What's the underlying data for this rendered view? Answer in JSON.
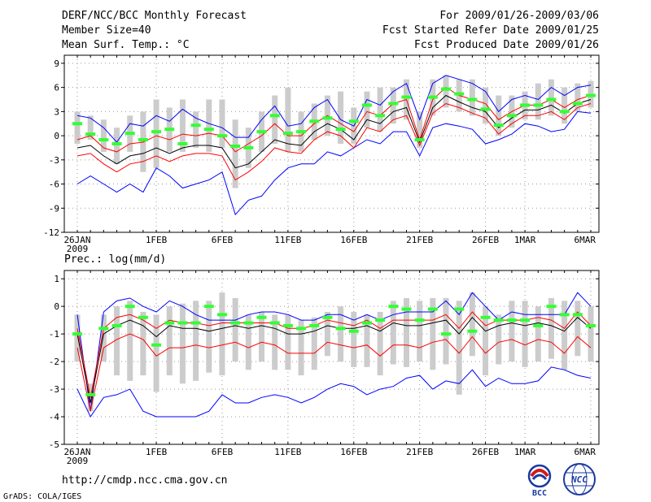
{
  "header": {
    "left": [
      "DERF/NCC/BCC Monthly Forecast",
      "Member Size=40",
      "Mean Surf. Temp.: °C"
    ],
    "right": [
      "For 2009/01/26-2009/03/06",
      "Fcst Started Refer Date 2009/01/25",
      "Fcst Produced Date 2009/01/26"
    ]
  },
  "footer": {
    "url": "http://cmdp.ncc.cma.gov.cn",
    "grads": "GrADS: COLA/IGES"
  },
  "logos": {
    "bcc": "BCC",
    "ncc": "NCC"
  },
  "colors": {
    "ensemble_max": "#0000ff",
    "ensemble_min": "#0000ff",
    "mean_bounds": "#ff0000",
    "mean": "#000000",
    "box": "#cccccc",
    "median": "#33ff33",
    "grid": "#999999"
  },
  "chart_data": [
    {
      "type": "line",
      "title": "Mean Surf. Temp.: °C",
      "x": [
        "26JAN",
        "27JAN",
        "28JAN",
        "29JAN",
        "30JAN",
        "31JAN",
        "1FEB",
        "2FEB",
        "3FEB",
        "4FEB",
        "5FEB",
        "6FEB",
        "7FEB",
        "8FEB",
        "9FEB",
        "10FEB",
        "11FEB",
        "12FEB",
        "13FEB",
        "14FEB",
        "15FEB",
        "16FEB",
        "17FEB",
        "18FEB",
        "19FEB",
        "20FEB",
        "21FEB",
        "22FEB",
        "23FEB",
        "24FEB",
        "25FEB",
        "26FEB",
        "27FEB",
        "28FEB",
        "1MAR",
        "2MAR",
        "3MAR",
        "4MAR",
        "5MAR",
        "6MAR"
      ],
      "xticks": [
        {
          "index": 0,
          "label": "26JAN"
        },
        {
          "index": 6,
          "label": "1FEB"
        },
        {
          "index": 11,
          "label": "6FEB"
        },
        {
          "index": 16,
          "label": "11FEB"
        },
        {
          "index": 21,
          "label": "16FEB"
        },
        {
          "index": 26,
          "label": "21FEB"
        },
        {
          "index": 31,
          "label": "26FEB"
        },
        {
          "index": 34,
          "label": "1MAR"
        },
        {
          "index": 39,
          "label": "6MAR"
        }
      ],
      "year_label": "2009",
      "ylim": [
        -12,
        10
      ],
      "yticks": [
        -12,
        -9,
        -6,
        -3,
        0,
        3,
        6,
        9
      ],
      "series": [
        {
          "name": "max",
          "values": [
            2.5,
            2.2,
            1.0,
            -0.8,
            1.5,
            1.2,
            2.5,
            1.8,
            3.3,
            2.2,
            1.5,
            1.0,
            -0.2,
            -0.2,
            2.0,
            3.7,
            1.2,
            1.5,
            3.5,
            4.5,
            2.0,
            1.2,
            4.5,
            3.8,
            5.5,
            6.5,
            2.0,
            6.5,
            7.5,
            7.0,
            6.5,
            5.5,
            3.0,
            4.5,
            5.0,
            4.5,
            6.0,
            5.0,
            6.0,
            6.3
          ]
        },
        {
          "name": "upper",
          "values": [
            -0.5,
            0.0,
            -1.5,
            -2.0,
            -1.0,
            -0.8,
            0.0,
            -0.5,
            0.2,
            0.0,
            0.3,
            0.0,
            -2.0,
            -1.0,
            0.0,
            1.5,
            0.0,
            0.0,
            1.5,
            2.5,
            1.5,
            0.5,
            3.0,
            2.5,
            4.0,
            4.5,
            -0.5,
            4.5,
            6.0,
            5.0,
            4.5,
            4.0,
            2.0,
            3.0,
            3.8,
            3.8,
            4.5,
            3.5,
            4.5,
            5.0
          ]
        },
        {
          "name": "mean",
          "values": [
            -1.5,
            -1.2,
            -2.5,
            -3.5,
            -2.5,
            -2.2,
            -1.5,
            -2.2,
            -1.5,
            -1.2,
            -1.2,
            -1.5,
            -4.0,
            -3.5,
            -2.0,
            -0.5,
            -1.0,
            -1.2,
            0.5,
            1.5,
            0.8,
            -0.5,
            2.0,
            1.5,
            3.0,
            3.5,
            -0.8,
            3.5,
            5.0,
            4.2,
            3.5,
            3.0,
            1.0,
            2.2,
            3.2,
            3.2,
            3.8,
            2.8,
            4.0,
            4.5
          ]
        },
        {
          "name": "lower",
          "values": [
            -2.5,
            -2.2,
            -3.5,
            -4.5,
            -3.5,
            -3.2,
            -2.5,
            -3.2,
            -2.5,
            -2.2,
            -2.2,
            -2.5,
            -5.5,
            -4.5,
            -3.2,
            -1.5,
            -2.0,
            -2.2,
            -0.5,
            0.5,
            0.0,
            -1.5,
            1.0,
            0.5,
            2.0,
            2.5,
            -1.2,
            2.8,
            4.0,
            3.5,
            2.8,
            2.2,
            0.2,
            1.5,
            2.5,
            2.5,
            3.0,
            2.0,
            3.5,
            4.0
          ]
        },
        {
          "name": "min",
          "values": [
            -6.0,
            -5.0,
            -6.0,
            -7.0,
            -6.0,
            -7.0,
            -4.0,
            -5.0,
            -6.5,
            -6.0,
            -5.5,
            -4.5,
            -9.8,
            -8.0,
            -7.5,
            -5.5,
            -4.0,
            -3.5,
            -3.5,
            -2.0,
            -2.5,
            -1.5,
            -0.5,
            -1.0,
            0.5,
            0.5,
            -2.5,
            1.0,
            1.5,
            1.2,
            0.8,
            -1.0,
            -0.5,
            0.2,
            1.5,
            1.2,
            0.5,
            0.8,
            3.0,
            2.8
          ]
        },
        {
          "name": "median",
          "values": [
            1.5,
            0.2,
            -0.5,
            -1.0,
            0.3,
            -0.5,
            0.5,
            0.8,
            -1.0,
            1.3,
            0.8,
            0.0,
            -1.3,
            -1.5,
            0.5,
            2.5,
            0.3,
            0.5,
            1.8,
            2.2,
            0.8,
            1.8,
            3.8,
            2.5,
            4.0,
            4.8,
            -0.5,
            4.8,
            5.8,
            5.2,
            4.5,
            3.3,
            1.3,
            2.5,
            3.8,
            3.8,
            4.5,
            3.0,
            4.0,
            5.0
          ]
        },
        {
          "name": "box_high",
          "values": [
            3.0,
            2.5,
            2.0,
            1.0,
            2.5,
            3.0,
            4.5,
            3.5,
            4.5,
            3.0,
            4.5,
            4.5,
            2.0,
            1.0,
            3.0,
            5.0,
            6.0,
            3.0,
            4.0,
            5.0,
            5.5,
            3.5,
            5.5,
            6.0,
            6.0,
            7.0,
            3.0,
            7.0,
            7.5,
            7.0,
            7.0,
            6.0,
            5.0,
            5.0,
            5.5,
            6.5,
            7.0,
            6.0,
            6.5,
            6.8
          ]
        },
        {
          "name": "box_low",
          "values": [
            -1.0,
            -0.5,
            -2.0,
            -3.5,
            -2.0,
            -4.5,
            -4.0,
            -2.0,
            -2.0,
            -1.5,
            -2.0,
            -1.5,
            -6.5,
            -4.0,
            -2.0,
            -1.0,
            -2.0,
            -2.0,
            -0.5,
            0.0,
            -1.0,
            -1.0,
            1.0,
            0.5,
            1.5,
            2.0,
            -1.5,
            2.5,
            3.5,
            3.0,
            2.5,
            1.5,
            0.0,
            1.0,
            2.0,
            2.0,
            2.5,
            1.5,
            3.0,
            3.5
          ]
        }
      ]
    },
    {
      "type": "line",
      "title": "Prec.: log(mm/d)",
      "x": [
        "26JAN",
        "27JAN",
        "28JAN",
        "29JAN",
        "30JAN",
        "31JAN",
        "1FEB",
        "2FEB",
        "3FEB",
        "4FEB",
        "5FEB",
        "6FEB",
        "7FEB",
        "8FEB",
        "9FEB",
        "10FEB",
        "11FEB",
        "12FEB",
        "13FEB",
        "14FEB",
        "15FEB",
        "16FEB",
        "17FEB",
        "18FEB",
        "19FEB",
        "20FEB",
        "21FEB",
        "22FEB",
        "23FEB",
        "24FEB",
        "25FEB",
        "26FEB",
        "27FEB",
        "28FEB",
        "1MAR",
        "2MAR",
        "3MAR",
        "4MAR",
        "5MAR",
        "6MAR"
      ],
      "xticks": [
        {
          "index": 0,
          "label": "26JAN"
        },
        {
          "index": 6,
          "label": "1FEB"
        },
        {
          "index": 11,
          "label": "6FEB"
        },
        {
          "index": 16,
          "label": "11FEB"
        },
        {
          "index": 21,
          "label": "16FEB"
        },
        {
          "index": 26,
          "label": "21FEB"
        },
        {
          "index": 31,
          "label": "26FEB"
        },
        {
          "index": 34,
          "label": "1MAR"
        },
        {
          "index": 39,
          "label": "6MAR"
        }
      ],
      "year_label": "2009",
      "ylim": [
        -5,
        1.3
      ],
      "yticks": [
        -5,
        -4,
        -3,
        -2,
        -1,
        0,
        1
      ],
      "series": [
        {
          "name": "max",
          "values": [
            -0.3,
            -3.8,
            -0.2,
            0.2,
            0.3,
            0.0,
            -0.2,
            0.2,
            0.0,
            -0.3,
            -0.5,
            -0.5,
            -0.5,
            -0.3,
            -0.2,
            -0.2,
            -0.3,
            -0.5,
            -0.5,
            -0.3,
            -0.3,
            -0.5,
            -0.3,
            -0.5,
            -0.3,
            -0.2,
            -0.2,
            -0.2,
            0.2,
            -0.3,
            0.5,
            0.0,
            -0.5,
            -0.2,
            -0.3,
            -0.3,
            -0.3,
            -0.3,
            0.5,
            0.0
          ]
        },
        {
          "name": "upper",
          "values": [
            -0.8,
            -3.3,
            -0.8,
            -0.4,
            -0.3,
            -0.5,
            -0.8,
            -0.5,
            -0.6,
            -0.6,
            -0.7,
            -0.6,
            -0.6,
            -0.6,
            -0.6,
            -0.6,
            -0.8,
            -0.8,
            -0.7,
            -0.5,
            -0.6,
            -0.7,
            -0.5,
            -0.8,
            -0.5,
            -0.5,
            -0.5,
            -0.5,
            -0.3,
            -0.8,
            -0.2,
            -0.7,
            -0.5,
            -0.5,
            -0.5,
            -0.4,
            -0.5,
            -0.8,
            -0.2,
            -0.7
          ]
        },
        {
          "name": "mean",
          "values": [
            -1.0,
            -3.5,
            -1.0,
            -0.7,
            -0.5,
            -0.7,
            -1.1,
            -0.7,
            -0.8,
            -0.8,
            -0.9,
            -0.8,
            -0.7,
            -0.8,
            -0.7,
            -0.8,
            -1.0,
            -1.0,
            -0.9,
            -0.7,
            -0.8,
            -0.8,
            -0.7,
            -0.9,
            -0.6,
            -0.7,
            -0.7,
            -0.6,
            -0.5,
            -1.0,
            -0.4,
            -0.9,
            -0.7,
            -0.6,
            -0.7,
            -0.6,
            -0.7,
            -0.9,
            -0.4,
            -0.8
          ]
        },
        {
          "name": "lower",
          "values": [
            -1.5,
            -3.8,
            -1.5,
            -1.2,
            -1.0,
            -1.2,
            -1.8,
            -1.5,
            -1.5,
            -1.4,
            -1.5,
            -1.4,
            -1.3,
            -1.5,
            -1.3,
            -1.4,
            -1.7,
            -1.7,
            -1.7,
            -1.3,
            -1.4,
            -1.5,
            -1.4,
            -1.8,
            -1.4,
            -1.4,
            -1.5,
            -1.3,
            -1.2,
            -1.7,
            -1.1,
            -1.7,
            -1.3,
            -1.2,
            -1.4,
            -1.2,
            -1.3,
            -1.7,
            -1.1,
            -1.5
          ]
        },
        {
          "name": "min",
          "values": [
            -3.0,
            -4.0,
            -3.3,
            -3.2,
            -3.0,
            -3.8,
            -4.0,
            -4.0,
            -4.0,
            -4.0,
            -3.8,
            -3.2,
            -3.5,
            -3.5,
            -3.3,
            -3.2,
            -3.3,
            -3.5,
            -3.3,
            -3.0,
            -2.8,
            -2.9,
            -3.2,
            -3.0,
            -2.9,
            -2.6,
            -2.5,
            -3.0,
            -2.7,
            -2.8,
            -2.3,
            -2.9,
            -2.6,
            -2.8,
            -2.8,
            -2.7,
            -2.2,
            -2.3,
            -2.5,
            -2.6
          ]
        },
        {
          "name": "median",
          "values": [
            -1.0,
            -3.2,
            -0.8,
            -0.7,
            0.0,
            -0.4,
            -1.4,
            -0.6,
            -0.6,
            -0.6,
            0.0,
            -0.3,
            -0.6,
            -0.6,
            -0.4,
            -0.6,
            -0.7,
            -0.8,
            -0.7,
            -0.4,
            -0.8,
            -0.9,
            -0.6,
            -0.5,
            0.0,
            -0.1,
            -0.5,
            -0.1,
            -1.0,
            -0.1,
            -0.9,
            -0.4,
            -0.5,
            -0.5,
            -0.5,
            -0.7,
            0.0,
            -0.3,
            -0.3,
            -0.7
          ]
        },
        {
          "name": "box_high",
          "values": [
            -0.3,
            -2.8,
            -0.3,
            0.0,
            0.2,
            -0.2,
            -0.3,
            0.0,
            0.1,
            0.2,
            0.2,
            0.5,
            0.3,
            -0.3,
            -0.2,
            -0.3,
            -0.3,
            -0.5,
            -0.4,
            -0.2,
            0.0,
            -0.2,
            -0.3,
            -0.2,
            0.2,
            0.3,
            0.2,
            0.3,
            0.3,
            0.2,
            0.5,
            0.0,
            -0.3,
            0.2,
            0.2,
            0.0,
            0.3,
            0.2,
            0.2,
            0.0
          ]
        },
        {
          "name": "box_low",
          "values": [
            -2.0,
            -3.8,
            -2.0,
            -2.5,
            -2.7,
            -2.5,
            -3.1,
            -2.5,
            -2.8,
            -2.7,
            -2.4,
            -2.5,
            -2.0,
            -2.3,
            -2.0,
            -2.3,
            -2.3,
            -2.5,
            -2.3,
            -1.8,
            -2.0,
            -2.2,
            -2.2,
            -2.5,
            -2.1,
            -2.2,
            -2.0,
            -2.3,
            -2.1,
            -3.2,
            -1.8,
            -2.5,
            -2.1,
            -2.0,
            -2.2,
            -2.0,
            -1.9,
            -2.3,
            -1.8,
            -2.0
          ]
        }
      ]
    }
  ]
}
